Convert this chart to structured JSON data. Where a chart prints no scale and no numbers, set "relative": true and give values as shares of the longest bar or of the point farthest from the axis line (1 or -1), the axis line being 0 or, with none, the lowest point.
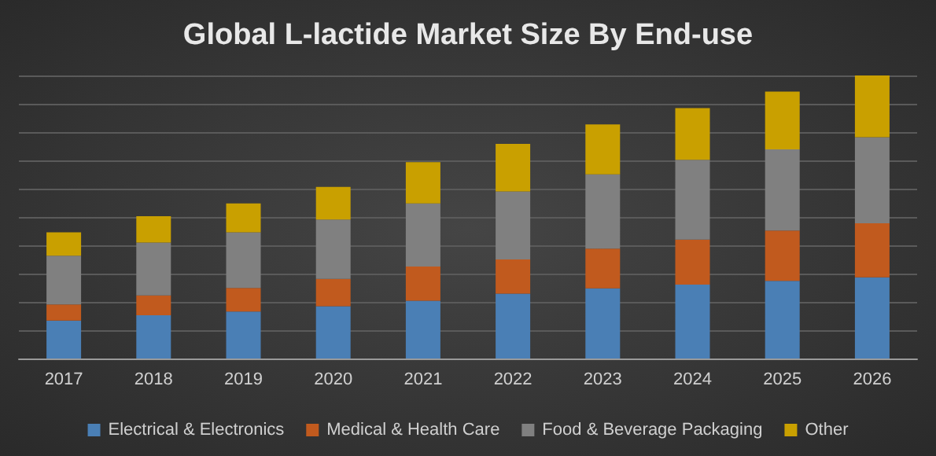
{
  "chart_data": {
    "type": "bar",
    "title": "Global L-lactide Market Size By End-use",
    "relative": true,
    "stacked": true,
    "grid": "y",
    "legend": "bottom",
    "categories": [
      "2017",
      "2018",
      "2019",
      "2020",
      "2021",
      "2022",
      "2023",
      "2024",
      "2025",
      "2026"
    ],
    "series": [
      {
        "name": "Electrical & Electronics",
        "color": "#4a7fb5",
        "values": [
          0.134,
          0.153,
          0.166,
          0.185,
          0.204,
          0.229,
          0.248,
          0.261,
          0.274,
          0.287
        ]
      },
      {
        "name": "Medical & Health Care",
        "color": "#c15a1e",
        "values": [
          0.057,
          0.07,
          0.083,
          0.096,
          0.121,
          0.121,
          0.14,
          0.159,
          0.178,
          0.191
        ]
      },
      {
        "name": "Food & Beverage Packaging",
        "color": "#808080",
        "values": [
          0.172,
          0.187,
          0.197,
          0.21,
          0.223,
          0.24,
          0.263,
          0.282,
          0.287,
          0.304
        ]
      },
      {
        "name": "Other",
        "color": "#c9a000",
        "values": [
          0.083,
          0.093,
          0.102,
          0.115,
          0.146,
          0.168,
          0.176,
          0.183,
          0.204,
          0.218
        ]
      }
    ]
  }
}
